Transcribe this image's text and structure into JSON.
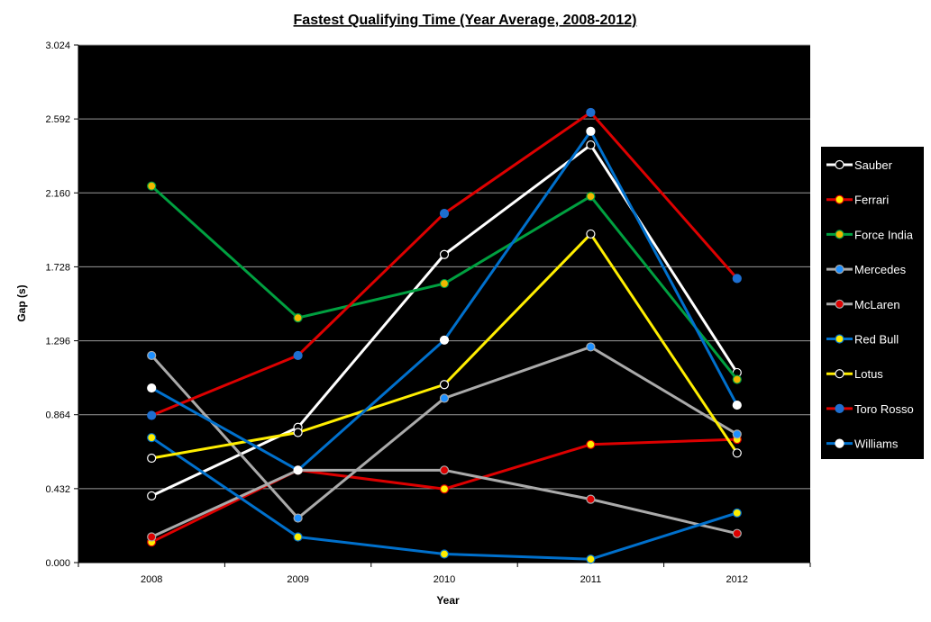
{
  "chart_data": {
    "type": "line",
    "title": "Fastest Qualifying Time (Year Average, 2008-2012)",
    "xlabel": "Year",
    "ylabel": "Gap (s)",
    "categories": [
      "2008",
      "2009",
      "2010",
      "2011",
      "2012"
    ],
    "ylim": [
      0,
      3.024
    ],
    "yticks": [
      "0.000",
      "0.432",
      "0.864",
      "1.296",
      "1.728",
      "2.160",
      "2.592",
      "3.024"
    ],
    "grid": true,
    "legend_position": "right",
    "plot_background": "#000000",
    "series": [
      {
        "name": "Sauber",
        "line_color": "#ffffff",
        "marker_color": "#000000",
        "marker_stroke": "#ffffff",
        "values": [
          0.39,
          0.79,
          1.8,
          2.44,
          1.11
        ]
      },
      {
        "name": "Ferrari",
        "line_color": "#dd0000",
        "marker_color": "#ffee00",
        "marker_stroke": "#dd0000",
        "values": [
          0.12,
          0.54,
          0.43,
          0.69,
          0.72
        ]
      },
      {
        "name": "Force India",
        "line_color": "#00a040",
        "marker_color": "#f0b800",
        "marker_stroke": "#00a040",
        "values": [
          2.2,
          1.43,
          1.63,
          2.14,
          1.07
        ]
      },
      {
        "name": "Mercedes",
        "line_color": "#aaaaaa",
        "marker_color": "#1e90ff",
        "marker_stroke": "#aaaaaa",
        "values": [
          1.21,
          0.26,
          0.96,
          1.26,
          0.75
        ]
      },
      {
        "name": "McLaren",
        "line_color": "#aaaaaa",
        "marker_color": "#dd0000",
        "marker_stroke": "#aaaaaa",
        "values": [
          0.15,
          0.54,
          0.54,
          0.37,
          0.17
        ]
      },
      {
        "name": "Red Bull",
        "line_color": "#0070cc",
        "marker_color": "#ffee00",
        "marker_stroke": "#0070cc",
        "values": [
          0.73,
          0.15,
          0.05,
          0.02,
          0.29
        ]
      },
      {
        "name": "Lotus",
        "line_color": "#ffee00",
        "marker_color": "#000000",
        "marker_stroke": "#ffffff",
        "values": [
          0.61,
          0.76,
          1.04,
          1.92,
          0.64
        ]
      },
      {
        "name": "Toro Rosso",
        "line_color": "#dd0000",
        "marker_color": "#1e6fd0",
        "marker_stroke": "#1e6fd0",
        "values": [
          0.86,
          1.21,
          2.04,
          2.63,
          1.66
        ]
      },
      {
        "name": "Williams",
        "line_color": "#0070cc",
        "marker_color": "#ffffff",
        "marker_stroke": "#ffffff",
        "values": [
          1.02,
          0.54,
          1.3,
          2.52,
          0.92
        ]
      }
    ]
  }
}
